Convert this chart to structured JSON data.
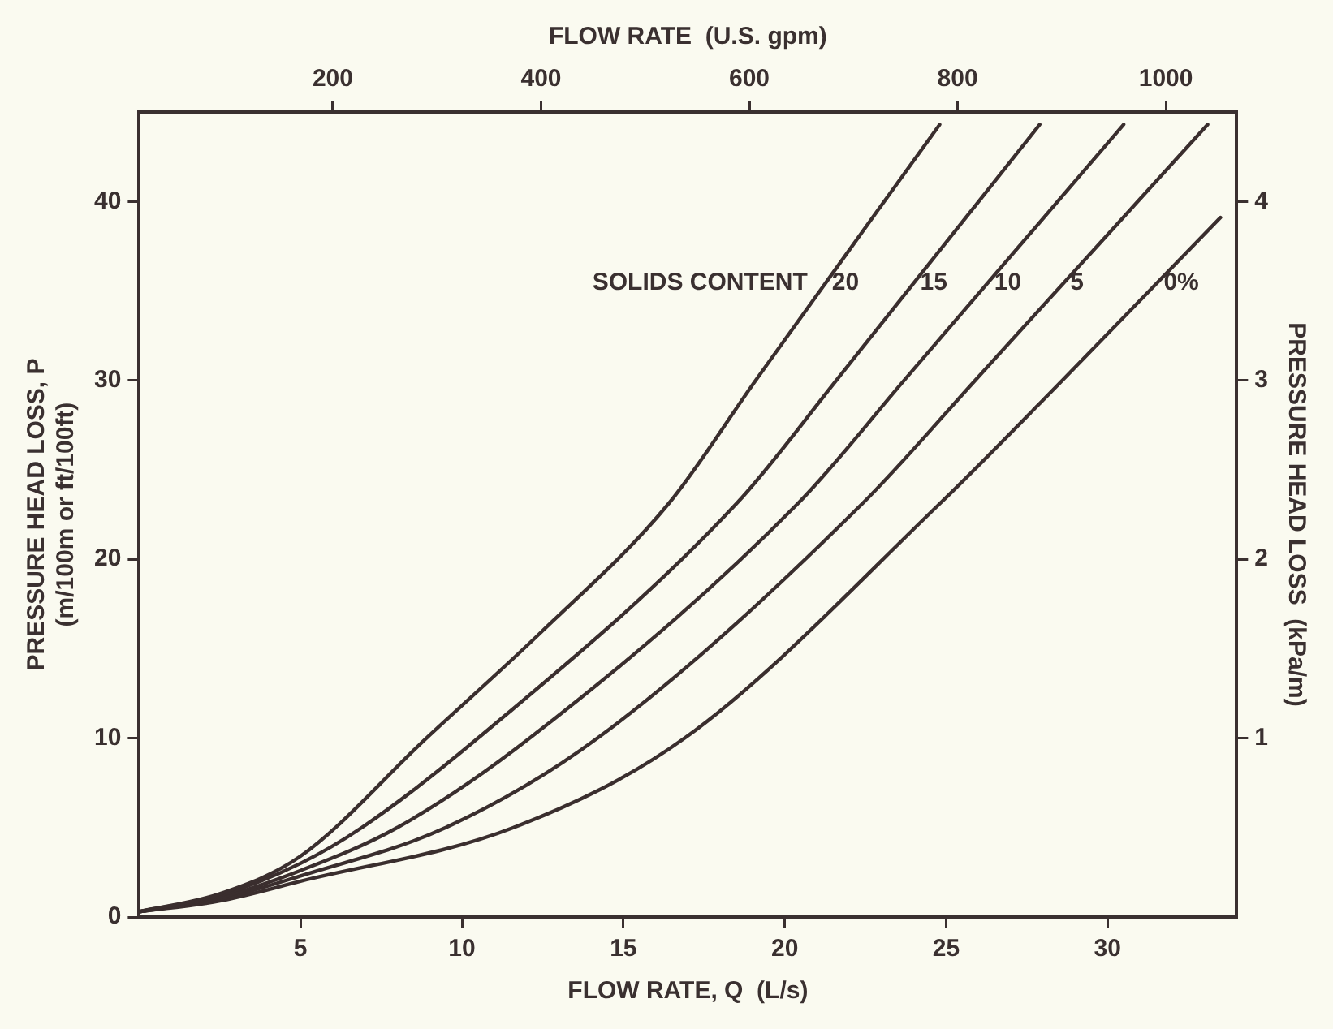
{
  "chart_data": {
    "type": "line",
    "xlabel": "FLOW RATE, Q  (L/s)",
    "ylabel": "PRESSURE HEAD LOSS, P\n(m/100m or ft/100ft)",
    "y2label": "PRESSURE HEAD LOSS  (kPa/m)",
    "x2label": "FLOW RATE  (U.S. gpm)",
    "legend_title": "SOLIDS CONTENT",
    "xlim": [
      0,
      34
    ],
    "xticks": [
      5,
      10,
      15,
      20,
      25,
      30
    ],
    "x2lim": [
      14,
      1068
    ],
    "x2ticks": [
      200,
      400,
      600,
      800,
      1000
    ],
    "ylim": [
      0,
      45
    ],
    "yticks": [
      0,
      10,
      20,
      30,
      40
    ],
    "y2lim": [
      0,
      4.5
    ],
    "y2ticks": [
      1,
      2,
      3,
      4
    ],
    "marker": "none",
    "line_style": "solid",
    "grid": false,
    "series": [
      {
        "name": "20",
        "color": "#3a2e2e",
        "x": [
          0,
          2.5,
          5,
          8.9,
          12.5,
          16.4,
          19.1,
          24.8
        ],
        "values": [
          0.3,
          1.3,
          3.4,
          10,
          16,
          23.1,
          30,
          44.3
        ]
      },
      {
        "name": "15",
        "color": "#3a2e2e",
        "x": [
          0,
          2.5,
          5,
          6.9,
          10.5,
          18.5,
          21.6,
          27.9
        ],
        "values": [
          0.3,
          1.2,
          3.0,
          5,
          10,
          23.1,
          30,
          44.3
        ]
      },
      {
        "name": "10",
        "color": "#3a2e2e",
        "x": [
          0,
          2.5,
          5,
          8,
          12.1,
          20.4,
          23.7,
          30.5
        ],
        "values": [
          0.3,
          1.1,
          2.6,
          5,
          10,
          23.1,
          30,
          44.3
        ]
      },
      {
        "name": "5",
        "color": "#3a2e2e",
        "x": [
          0,
          2.5,
          5,
          9.5,
          14.2,
          22.4,
          25.9,
          33.1
        ],
        "values": [
          0.3,
          1.0,
          2.3,
          5,
          10,
          23.1,
          30,
          44.3
        ]
      },
      {
        "name": "0%",
        "color": "#3a2e2e",
        "x": [
          0,
          2.5,
          5,
          11.6,
          16.9,
          24.8,
          28.6,
          33.5
        ],
        "values": [
          0.3,
          0.9,
          2.0,
          5,
          10,
          23.1,
          30,
          39.1
        ]
      }
    ]
  }
}
